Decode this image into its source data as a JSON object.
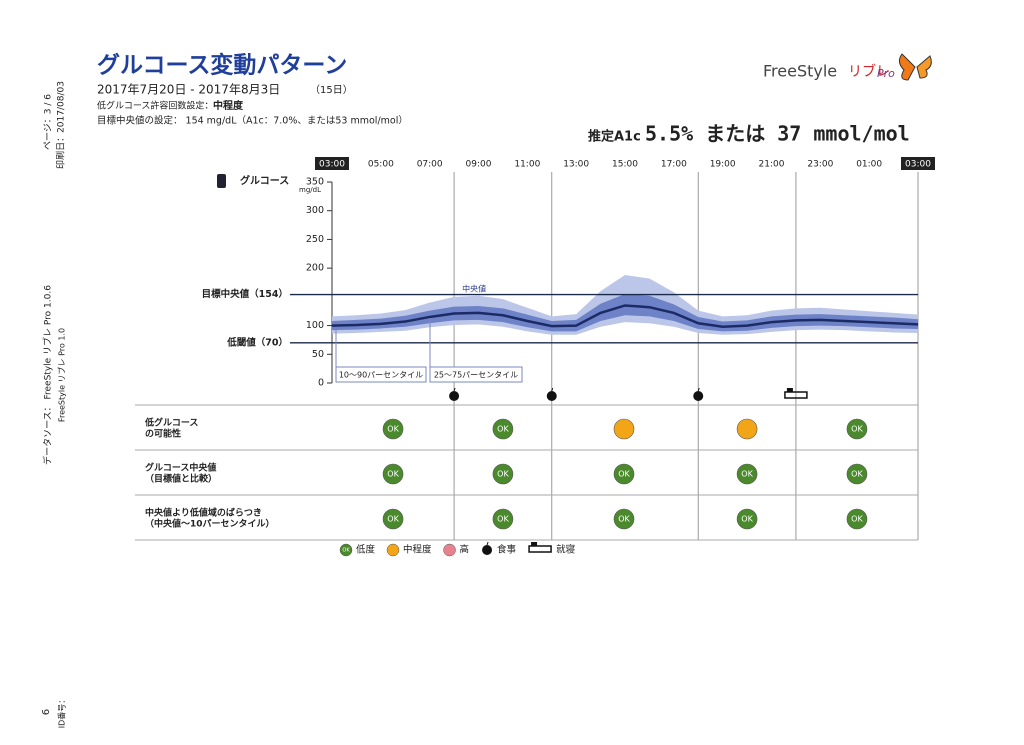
{
  "header": {
    "title": "グルコース変動パターン",
    "date_range": "2017年7月20日 - 2017年8月3日",
    "days": "（15日）",
    "low_glucose_setting": "低グルコース許容回数設定：",
    "low_glucose_setting_value": "中程度",
    "target_setting": "目標中央値の設定： 154 mg/dL（A1c：7.0%、または53 mmol/mol）",
    "estimated_a1c_label": "推定A1c",
    "estimated_a1c": "5.5% または 37 mmol/mol",
    "logo": "FreeStyle",
    "logo_sub": "リブレ",
    "logo_pro": "Pro"
  },
  "side": {
    "page": "ページ：3 / 6",
    "printed": "印刷日：2017/08/03",
    "data_source": "データソース： FreeStyle リブレ Pro 1.0.6",
    "software": "FreeStyle リブレ Pro 1.0",
    "id": "6",
    "id_label": "ID番号："
  },
  "chart_data": {
    "type": "band",
    "series_label": "グルコース",
    "y_unit": "mg/dL",
    "x": [
      3,
      4,
      5,
      6,
      7,
      8,
      9,
      10,
      11,
      12,
      13,
      14,
      15,
      16,
      17,
      18,
      19,
      20,
      21,
      22,
      23,
      24,
      25,
      26,
      27
    ],
    "xlim": [
      3,
      27
    ],
    "xticks": [
      {
        "value": 3,
        "label": "03:00"
      },
      {
        "value": 5,
        "label": "05:00"
      },
      {
        "value": 7,
        "label": "07:00"
      },
      {
        "value": 9,
        "label": "09:00"
      },
      {
        "value": 11,
        "label": "11:00"
      },
      {
        "value": 13,
        "label": "13:00"
      },
      {
        "value": 15,
        "label": "15:00"
      },
      {
        "value": 17,
        "label": "17:00"
      },
      {
        "value": 19,
        "label": "19:00"
      },
      {
        "value": 21,
        "label": "21:00"
      },
      {
        "value": 23,
        "label": "23:00"
      },
      {
        "value": 25,
        "label": "01:00"
      },
      {
        "value": 27,
        "label": "03:00"
      }
    ],
    "ylim": [
      0,
      350
    ],
    "yticks": [
      0,
      50,
      100,
      200,
      250,
      300,
      350
    ],
    "bands": [
      {
        "name": "10～90パーセンタイル",
        "color": "#bcc6e8",
        "low": [
          86,
          87,
          89,
          91,
          97,
          101,
          102,
          98,
          90,
          84,
          84,
          98,
          106,
          104,
          98,
          87,
          84,
          85,
          89,
          92,
          93,
          92,
          90,
          88,
          87
        ],
        "high": [
          116,
          118,
          121,
          127,
          140,
          150,
          152,
          146,
          131,
          116,
          120,
          160,
          188,
          182,
          158,
          126,
          116,
          118,
          126,
          130,
          131,
          128,
          125,
          122,
          119
        ]
      },
      {
        "name": "25～75パーセンタイル",
        "color": "#6e82c8",
        "low": [
          92,
          93,
          95,
          98,
          104,
          109,
          110,
          106,
          97,
          90,
          90,
          108,
          118,
          116,
          108,
          94,
          90,
          91,
          96,
          99,
          100,
          99,
          97,
          95,
          94
        ],
        "high": [
          108,
          110,
          112,
          117,
          126,
          133,
          134,
          130,
          119,
          108,
          110,
          138,
          155,
          152,
          137,
          115,
          107,
          109,
          116,
          119,
          120,
          118,
          116,
          114,
          111
        ]
      }
    ],
    "median": {
      "name": "中央値",
      "color": "#1c2a66",
      "values": [
        100,
        101,
        103,
        107,
        115,
        121,
        122,
        118,
        108,
        99,
        100,
        122,
        135,
        132,
        122,
        104,
        98,
        100,
        106,
        109,
        110,
        108,
        106,
        104,
        102
      ]
    },
    "reference_lines": [
      {
        "label": "目標中央値（154）",
        "value": 154
      },
      {
        "label": "低閾値（70）",
        "value": 70
      }
    ],
    "period_boundaries": [
      8,
      12,
      18,
      22
    ],
    "events": [
      {
        "x": 8,
        "icon": "meal"
      },
      {
        "x": 12,
        "icon": "meal"
      },
      {
        "x": 18,
        "icon": "meal"
      },
      {
        "x": 22,
        "icon": "bed"
      }
    ]
  },
  "table": {
    "rows": [
      {
        "label": [
          "低グルコース",
          "の可能性"
        ],
        "cells": [
          {
            "label": "OK",
            "color": "#4a8a2c"
          },
          {
            "label": "OK",
            "color": "#4a8a2c"
          },
          {
            "color": "#f2a516"
          },
          {
            "color": "#f2a516"
          },
          {
            "label": "OK",
            "color": "#4a8a2c"
          }
        ]
      },
      {
        "label": [
          "グルコース中央値",
          "（目標値と比較）"
        ],
        "cells": [
          {
            "label": "OK",
            "color": "#4a8a2c"
          },
          {
            "label": "OK",
            "color": "#4a8a2c"
          },
          {
            "label": "OK",
            "color": "#4a8a2c"
          },
          {
            "label": "OK",
            "color": "#4a8a2c"
          },
          {
            "label": "OK",
            "color": "#4a8a2c"
          }
        ]
      },
      {
        "label": [
          "中央値より低値域のばらつき",
          "（中央値～10パーセンタイル）"
        ],
        "cells": [
          {
            "label": "OK",
            "color": "#4a8a2c"
          },
          {
            "label": "OK",
            "color": "#4a8a2c"
          },
          {
            "label": "OK",
            "color": "#4a8a2c"
          },
          {
            "label": "OK",
            "color": "#4a8a2c"
          },
          {
            "label": "OK",
            "color": "#4a8a2c"
          }
        ]
      }
    ]
  },
  "legend": [
    {
      "label": "低度",
      "color": "#4a8a2c",
      "mark": "OK"
    },
    {
      "label": "中程度",
      "color": "#f2a516"
    },
    {
      "label": "高",
      "color": "#e8828f"
    },
    {
      "label": "食事",
      "icon": "meal"
    },
    {
      "label": "就寝",
      "icon": "bed"
    }
  ]
}
